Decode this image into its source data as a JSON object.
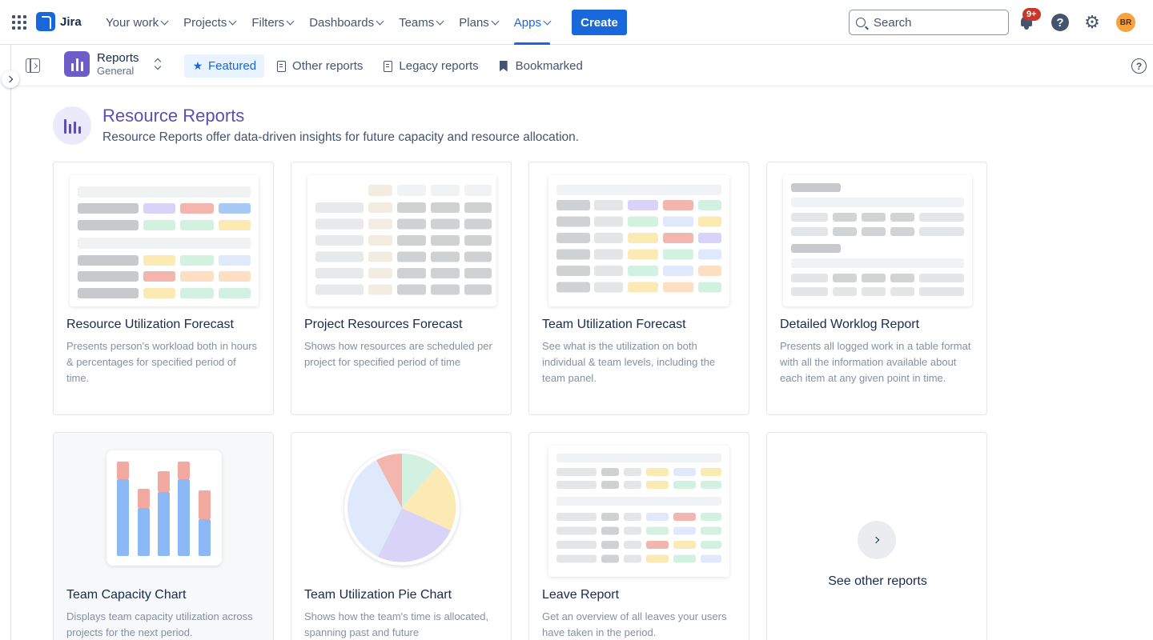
{
  "topnav": {
    "app_name": "Jira",
    "items": [
      {
        "label": "Your work"
      },
      {
        "label": "Projects"
      },
      {
        "label": "Filters"
      },
      {
        "label": "Dashboards"
      },
      {
        "label": "Teams"
      },
      {
        "label": "Plans"
      },
      {
        "label": "Apps",
        "active": true
      }
    ],
    "create_label": "Create",
    "search_placeholder": "Search",
    "notifications_badge": "9+",
    "help_label": "?",
    "avatar_initials": "BR",
    "accent_color": "#1868db"
  },
  "subheader": {
    "project_name": "Reports",
    "project_sub": "General",
    "tabs": [
      {
        "label": "Featured",
        "icon": "star-icon",
        "active": true
      },
      {
        "label": "Other reports",
        "icon": "document-icon"
      },
      {
        "label": "Legacy reports",
        "icon": "image-document-icon"
      },
      {
        "label": "Bookmarked",
        "icon": "bookmark-icon"
      }
    ],
    "help_label": "?"
  },
  "hero": {
    "title": "Resource Reports",
    "subtitle": "Resource Reports offer data-driven insights for future capacity and resource allocation.",
    "title_color": "#5e4db2"
  },
  "cards": [
    {
      "title": "Resource Utilization Forecast",
      "description": "Presents person's workload both in hours & percentages for specified period of time."
    },
    {
      "title": "Project Resources Forecast",
      "description": "Shows how resources are scheduled per project for specified period of time"
    },
    {
      "title": "Team Utilization Forecast",
      "description": "See what is the utilization on both individual & team levels, including the team panel."
    },
    {
      "title": "Detailed Worklog Report",
      "description": "Presents all logged work in a table format with all the information available about each item at any given point in time."
    },
    {
      "title": "Team Capacity Chart",
      "description": "Displays team capacity utilization across projects for the next period."
    },
    {
      "title": "Team Utilization Pie Chart",
      "description": "Shows how the team's time is allocated, spanning past and future"
    },
    {
      "title": "Leave Report",
      "description": "Get an overview of all leaves your users have taken in the period."
    }
  ],
  "see_other": {
    "label": "See other reports"
  }
}
